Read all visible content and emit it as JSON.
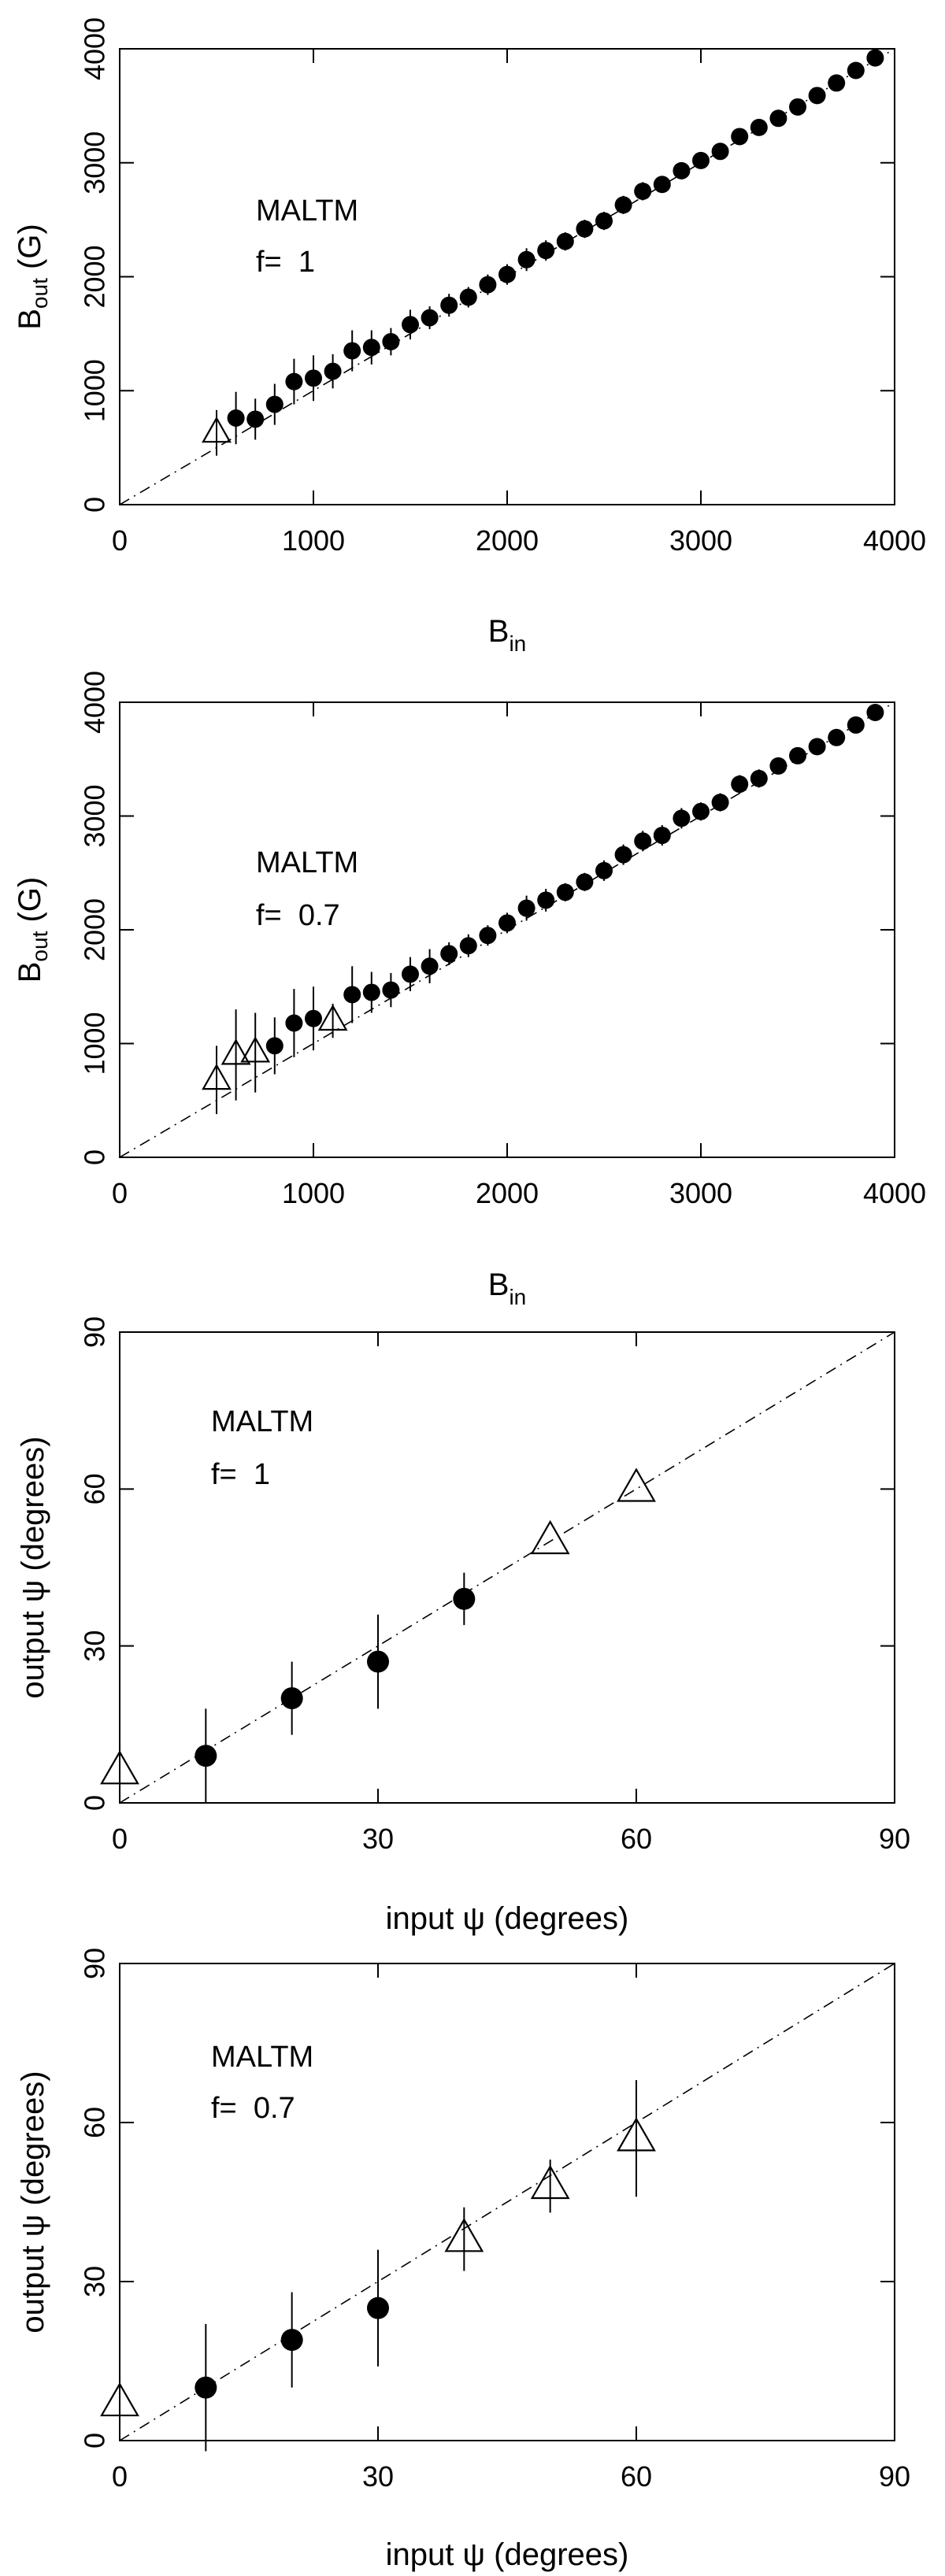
{
  "chart_data": [
    {
      "type": "scatter",
      "annotation": {
        "model": "MALTM",
        "f_label": "f=  1"
      },
      "xlabel": {
        "main": "B",
        "sub": "in"
      },
      "ylabel": {
        "main": "B",
        "sub": "out",
        "unit": "(G)"
      },
      "xlim": [
        0,
        4000
      ],
      "ylim": [
        0,
        4000
      ],
      "xticks": [
        0,
        1000,
        2000,
        3000,
        4000
      ],
      "yticks": [
        0,
        1000,
        2000,
        3000,
        4000
      ],
      "reference_line": {
        "style": "dash-dot",
        "from": [
          0,
          0
        ],
        "to": [
          4000,
          4000
        ]
      },
      "series": [
        {
          "name": "triangles",
          "marker": "open-triangle",
          "points": [
            [
              500,
              630,
              200
            ]
          ]
        },
        {
          "name": "circles",
          "marker": "filled-circle",
          "points": [
            [
              600,
              760,
              230
            ],
            [
              700,
              750,
              180
            ],
            [
              800,
              880,
              180
            ],
            [
              900,
              1080,
              200
            ],
            [
              1000,
              1110,
              200
            ],
            [
              1100,
              1170,
              150
            ],
            [
              1200,
              1350,
              180
            ],
            [
              1300,
              1380,
              150
            ],
            [
              1400,
              1430,
              120
            ],
            [
              1500,
              1580,
              130
            ],
            [
              1600,
              1640,
              100
            ],
            [
              1700,
              1750,
              100
            ],
            [
              1800,
              1820,
              90
            ],
            [
              1900,
              1930,
              90
            ],
            [
              2000,
              2020,
              90
            ],
            [
              2100,
              2150,
              100
            ],
            [
              2200,
              2230,
              90
            ],
            [
              2300,
              2310,
              80
            ],
            [
              2400,
              2420,
              80
            ],
            [
              2500,
              2490,
              80
            ],
            [
              2600,
              2630,
              80
            ],
            [
              2700,
              2750,
              80
            ],
            [
              2800,
              2810,
              70
            ],
            [
              2900,
              2930,
              70
            ],
            [
              3000,
              3020,
              70
            ],
            [
              3100,
              3100,
              70
            ],
            [
              3200,
              3230,
              70
            ],
            [
              3300,
              3310,
              70
            ],
            [
              3400,
              3390,
              60
            ],
            [
              3500,
              3490,
              60
            ],
            [
              3600,
              3590,
              60
            ],
            [
              3700,
              3700,
              60
            ],
            [
              3800,
              3810,
              60
            ],
            [
              3900,
              3920,
              60
            ]
          ]
        }
      ]
    },
    {
      "type": "scatter",
      "annotation": {
        "model": "MALTM",
        "f_label": "f=  0.7"
      },
      "xlabel": {
        "main": "B",
        "sub": "in"
      },
      "ylabel": {
        "main": "B",
        "sub": "out",
        "unit": "(G)"
      },
      "xlim": [
        0,
        4000
      ],
      "ylim": [
        0,
        4000
      ],
      "xticks": [
        0,
        1000,
        2000,
        3000,
        4000
      ],
      "yticks": [
        0,
        1000,
        2000,
        3000,
        4000
      ],
      "reference_line": {
        "style": "dash-dot",
        "from": [
          0,
          0
        ],
        "to": [
          4000,
          4000
        ]
      },
      "series": [
        {
          "name": "triangles",
          "marker": "open-triangle",
          "points": [
            [
              500,
              680,
              300
            ],
            [
              600,
              900,
              400
            ],
            [
              700,
              920,
              350
            ],
            [
              1100,
              1200,
              150
            ]
          ]
        },
        {
          "name": "circles",
          "marker": "filled-circle",
          "points": [
            [
              800,
              980,
              250
            ],
            [
              900,
              1180,
              300
            ],
            [
              1000,
              1220,
              280
            ],
            [
              1200,
              1430,
              250
            ],
            [
              1300,
              1450,
              180
            ],
            [
              1400,
              1470,
              150
            ],
            [
              1500,
              1610,
              150
            ],
            [
              1600,
              1680,
              150
            ],
            [
              1700,
              1790,
              100
            ],
            [
              1800,
              1860,
              100
            ],
            [
              1900,
              1950,
              90
            ],
            [
              2000,
              2060,
              90
            ],
            [
              2100,
              2190,
              110
            ],
            [
              2200,
              2260,
              100
            ],
            [
              2300,
              2330,
              80
            ],
            [
              2400,
              2420,
              80
            ],
            [
              2500,
              2520,
              90
            ],
            [
              2600,
              2660,
              90
            ],
            [
              2700,
              2780,
              90
            ],
            [
              2800,
              2830,
              90
            ],
            [
              2900,
              2980,
              90
            ],
            [
              3000,
              3040,
              80
            ],
            [
              3100,
              3120,
              80
            ],
            [
              3200,
              3280,
              80
            ],
            [
              3300,
              3330,
              80
            ],
            [
              3400,
              3440,
              70
            ],
            [
              3500,
              3530,
              70
            ],
            [
              3600,
              3610,
              70
            ],
            [
              3700,
              3690,
              70
            ],
            [
              3800,
              3800,
              70
            ],
            [
              3900,
              3910,
              70
            ]
          ]
        }
      ]
    },
    {
      "type": "scatter",
      "annotation": {
        "model": "MALTM",
        "f_label": "f=  1"
      },
      "xlabel": {
        "main": "input ψ (degrees)"
      },
      "ylabel": {
        "main": "output ψ (degrees)"
      },
      "xlim": [
        0,
        90
      ],
      "ylim": [
        0,
        90
      ],
      "xticks": [
        0,
        30,
        60,
        90
      ],
      "yticks": [
        0,
        30,
        60,
        90
      ],
      "reference_line": {
        "style": "dash-dot",
        "from": [
          0,
          0
        ],
        "to": [
          90,
          90
        ]
      },
      "series": [
        {
          "name": "triangles",
          "marker": "open-triangle",
          "points": [
            [
              0,
              6,
              0
            ],
            [
              50,
              50,
              0
            ],
            [
              60,
              60,
              0
            ]
          ]
        },
        {
          "name": "circles",
          "marker": "filled-circle",
          "points": [
            [
              10,
              9,
              9
            ],
            [
              20,
              20,
              7
            ],
            [
              30,
              27,
              9
            ],
            [
              40,
              39,
              5
            ]
          ]
        }
      ]
    },
    {
      "type": "scatter",
      "annotation": {
        "model": "MALTM",
        "f_label": "f=  0.7"
      },
      "xlabel": {
        "main": "input ψ (degrees)"
      },
      "ylabel": {
        "main": "output ψ (degrees)"
      },
      "xlim": [
        0,
        90
      ],
      "ylim": [
        0,
        90
      ],
      "xticks": [
        0,
        30,
        60,
        90
      ],
      "yticks": [
        0,
        30,
        60,
        90
      ],
      "reference_line": {
        "style": "dash-dot",
        "from": [
          0,
          0
        ],
        "to": [
          90,
          90
        ]
      },
      "series": [
        {
          "name": "triangles",
          "marker": "open-triangle",
          "points": [
            [
              0,
              7,
              0
            ],
            [
              40,
              38,
              6
            ],
            [
              50,
              48,
              5
            ],
            [
              60,
              57,
              11
            ]
          ]
        },
        {
          "name": "circles",
          "marker": "filled-circle",
          "points": [
            [
              10,
              10,
              12
            ],
            [
              20,
              19,
              9
            ],
            [
              30,
              25,
              11
            ]
          ]
        }
      ]
    }
  ]
}
